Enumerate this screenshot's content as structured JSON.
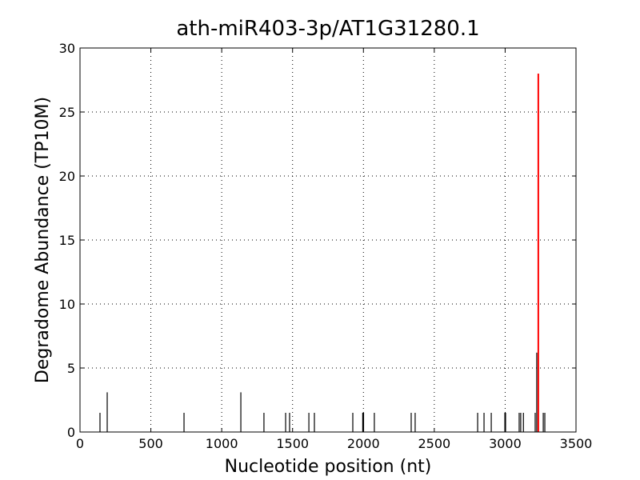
{
  "chart_data": {
    "type": "stem",
    "title": "ath-miR403-3p/AT1G31280.1",
    "xlabel": "Nucleotide position (nt)",
    "ylabel": "Degradome Abundance (TP10M)",
    "x": [
      141,
      192,
      734,
      1135,
      1298,
      1451,
      1479,
      1615,
      1654,
      1925,
      1995,
      2001,
      2077,
      2337,
      2365,
      2806,
      2851,
      2902,
      2998,
      3003,
      3099,
      3110,
      3129,
      3212,
      3223,
      3269,
      3280
    ],
    "values": [
      1.5,
      3.1,
      1.5,
      3.1,
      1.5,
      1.5,
      1.5,
      1.5,
      1.5,
      1.5,
      1.5,
      1.5,
      1.5,
      1.5,
      1.5,
      1.5,
      1.5,
      1.5,
      1.5,
      1.5,
      1.5,
      1.5,
      1.5,
      1.5,
      6.2,
      1.5,
      1.5
    ],
    "color": "#000000",
    "highlight": {
      "x": [
        3234
      ],
      "values": [
        28
      ],
      "color": "#ff0000"
    },
    "xlim": [
      0,
      3500
    ],
    "xticks": [
      0,
      500,
      1000,
      1500,
      2000,
      2500,
      3000,
      3500
    ],
    "ylim": [
      0,
      30
    ],
    "yticks": [
      0,
      5,
      10,
      15,
      20,
      25,
      30
    ],
    "grid": true
  }
}
